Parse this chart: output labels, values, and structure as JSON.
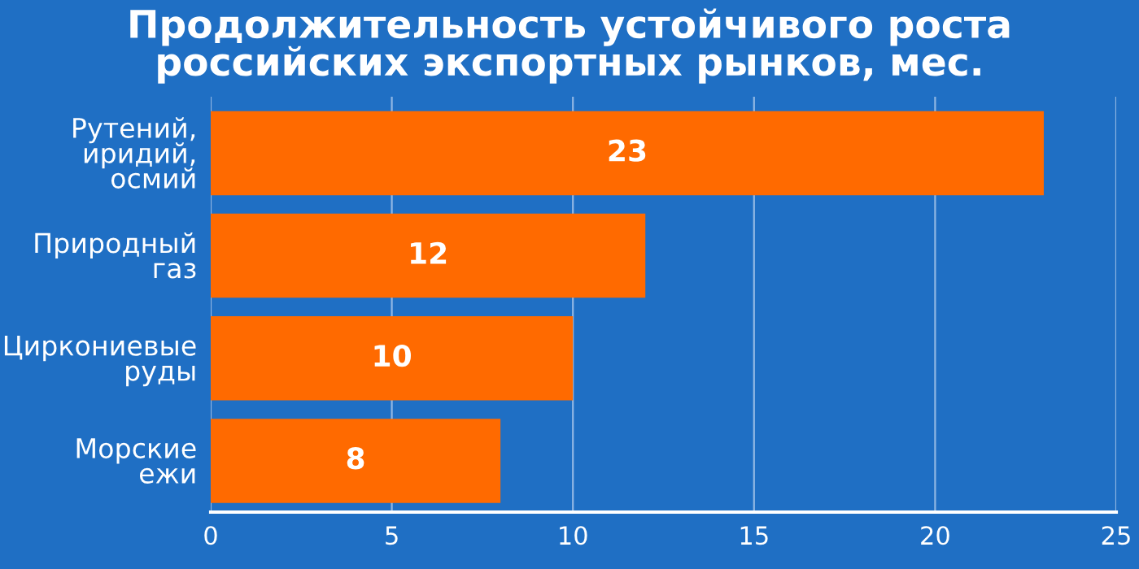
{
  "chart_data": {
    "type": "bar",
    "orientation": "horizontal",
    "title": "Продолжительность устойчивого роста\nроссийских экспортных рынков, мес.",
    "categories": [
      "Рутений,\nиридий,\nосмий",
      "Природный\nгаз",
      "Циркониевые\nруды",
      "Морские\nежи"
    ],
    "values": [
      23,
      12,
      10,
      8
    ],
    "color": "#ff6a00",
    "xlim": [
      0,
      25
    ],
    "xticks": [
      0,
      5,
      10,
      15,
      20,
      25
    ],
    "grid": "x",
    "data_labels": true
  }
}
